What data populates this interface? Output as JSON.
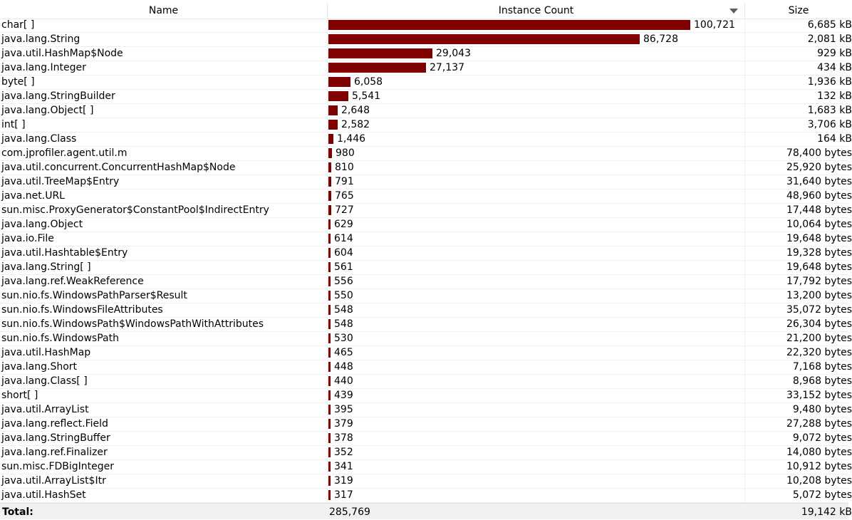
{
  "columns": {
    "name": "Name",
    "count": "Instance Count",
    "size": "Size"
  },
  "sort": {
    "column": "Instance Count",
    "direction": "descending",
    "icon": "sort-descending-icon"
  },
  "colors": {
    "bar": "#7f0000",
    "total_bg": "#f0f0f0"
  },
  "max_count": 100721,
  "rows": [
    {
      "name": "char[ ]",
      "count": 100721,
      "count_label": "100,721",
      "size": "6,685 kB"
    },
    {
      "name": "java.lang.String",
      "count": 86728,
      "count_label": "86,728",
      "size": "2,081 kB"
    },
    {
      "name": "java.util.HashMap$Node",
      "count": 29043,
      "count_label": "29,043",
      "size": "929 kB"
    },
    {
      "name": "java.lang.Integer",
      "count": 27137,
      "count_label": "27,137",
      "size": "434 kB"
    },
    {
      "name": "byte[ ]",
      "count": 6058,
      "count_label": "6,058",
      "size": "1,936 kB"
    },
    {
      "name": "java.lang.StringBuilder",
      "count": 5541,
      "count_label": "5,541",
      "size": "132 kB"
    },
    {
      "name": "java.lang.Object[ ]",
      "count": 2648,
      "count_label": "2,648",
      "size": "1,683 kB"
    },
    {
      "name": "int[ ]",
      "count": 2582,
      "count_label": "2,582",
      "size": "3,706 kB"
    },
    {
      "name": "java.lang.Class",
      "count": 1446,
      "count_label": "1,446",
      "size": "164 kB"
    },
    {
      "name": "com.jprofiler.agent.util.m",
      "count": 980,
      "count_label": "980",
      "size": "78,400 bytes"
    },
    {
      "name": "java.util.concurrent.ConcurrentHashMap$Node",
      "count": 810,
      "count_label": "810",
      "size": "25,920 bytes"
    },
    {
      "name": "java.util.TreeMap$Entry",
      "count": 791,
      "count_label": "791",
      "size": "31,640 bytes"
    },
    {
      "name": "java.net.URL",
      "count": 765,
      "count_label": "765",
      "size": "48,960 bytes"
    },
    {
      "name": "sun.misc.ProxyGenerator$ConstantPool$IndirectEntry",
      "count": 727,
      "count_label": "727",
      "size": "17,448 bytes"
    },
    {
      "name": "java.lang.Object",
      "count": 629,
      "count_label": "629",
      "size": "10,064 bytes"
    },
    {
      "name": "java.io.File",
      "count": 614,
      "count_label": "614",
      "size": "19,648 bytes"
    },
    {
      "name": "java.util.Hashtable$Entry",
      "count": 604,
      "count_label": "604",
      "size": "19,328 bytes"
    },
    {
      "name": "java.lang.String[ ]",
      "count": 561,
      "count_label": "561",
      "size": "19,648 bytes"
    },
    {
      "name": "java.lang.ref.WeakReference",
      "count": 556,
      "count_label": "556",
      "size": "17,792 bytes"
    },
    {
      "name": "sun.nio.fs.WindowsPathParser$Result",
      "count": 550,
      "count_label": "550",
      "size": "13,200 bytes"
    },
    {
      "name": "sun.nio.fs.WindowsFileAttributes",
      "count": 548,
      "count_label": "548",
      "size": "35,072 bytes"
    },
    {
      "name": "sun.nio.fs.WindowsPath$WindowsPathWithAttributes",
      "count": 548,
      "count_label": "548",
      "size": "26,304 bytes"
    },
    {
      "name": "sun.nio.fs.WindowsPath",
      "count": 530,
      "count_label": "530",
      "size": "21,200 bytes"
    },
    {
      "name": "java.util.HashMap",
      "count": 465,
      "count_label": "465",
      "size": "22,320 bytes"
    },
    {
      "name": "java.lang.Short",
      "count": 448,
      "count_label": "448",
      "size": "7,168 bytes"
    },
    {
      "name": "java.lang.Class[ ]",
      "count": 440,
      "count_label": "440",
      "size": "8,968 bytes"
    },
    {
      "name": "short[ ]",
      "count": 439,
      "count_label": "439",
      "size": "33,152 bytes"
    },
    {
      "name": "java.util.ArrayList",
      "count": 395,
      "count_label": "395",
      "size": "9,480 bytes"
    },
    {
      "name": "java.lang.reflect.Field",
      "count": 379,
      "count_label": "379",
      "size": "27,288 bytes"
    },
    {
      "name": "java.lang.StringBuffer",
      "count": 378,
      "count_label": "378",
      "size": "9,072 bytes"
    },
    {
      "name": "java.lang.ref.Finalizer",
      "count": 352,
      "count_label": "352",
      "size": "14,080 bytes"
    },
    {
      "name": "sun.misc.FDBigInteger",
      "count": 341,
      "count_label": "341",
      "size": "10,912 bytes"
    },
    {
      "name": "java.util.ArrayList$Itr",
      "count": 319,
      "count_label": "319",
      "size": "10,208 bytes"
    },
    {
      "name": "java.util.HashSet",
      "count": 317,
      "count_label": "317",
      "size": "5,072 bytes"
    }
  ],
  "total": {
    "label": "Total:",
    "count": "285,769",
    "size": "19,142 kB"
  }
}
